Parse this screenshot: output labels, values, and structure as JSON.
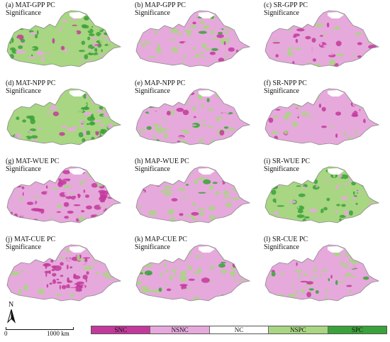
{
  "panels": [
    {
      "title": "(a) MAT-GPP PC",
      "subtitle": "Significance",
      "dominant": "mixed-green"
    },
    {
      "title": "(b) MAP-GPP PC",
      "subtitle": "Significance",
      "dominant": "mixed-pink"
    },
    {
      "title": "(c) SR-GPP PC",
      "subtitle": "Significance",
      "dominant": "pink"
    },
    {
      "title": "(d) MAT-NPP PC",
      "subtitle": "Significance",
      "dominant": "mixed-green"
    },
    {
      "title": "(e) MAP-NPP PC",
      "subtitle": "Significance",
      "dominant": "mixed-pink"
    },
    {
      "title": "(f) SR-NPP PC",
      "subtitle": "Significance",
      "dominant": "pink"
    },
    {
      "title": "(g) MAT-WUE PC",
      "subtitle": "Significance",
      "dominant": "magenta"
    },
    {
      "title": "(h) MAP-WUE PC",
      "subtitle": "Significance",
      "dominant": "mixed-pink"
    },
    {
      "title": "(i) SR-WUE PC",
      "subtitle": "Significance",
      "dominant": "green"
    },
    {
      "title": "(j) MAT-CUE PC",
      "subtitle": "Significance",
      "dominant": "magenta-center"
    },
    {
      "title": "(k) MAP-CUE PC",
      "subtitle": "Significance",
      "dominant": "mixed-pink"
    },
    {
      "title": "(l) SR-CUE PC",
      "subtitle": "Significance",
      "dominant": "mixed-pink"
    }
  ],
  "legend": [
    {
      "label": "SNC",
      "color": "#c3399b"
    },
    {
      "label": "NSNC",
      "color": "#e6a9dc"
    },
    {
      "label": "NC",
      "color": "#ffffff"
    },
    {
      "label": "NSPC",
      "color": "#a8d682"
    },
    {
      "label": "SPC",
      "color": "#3aa23a"
    }
  ],
  "north_arrow": {
    "label": "N",
    "icon": "north-arrow-icon"
  },
  "scale_bar": {
    "start": "0",
    "end": "1000 km"
  }
}
